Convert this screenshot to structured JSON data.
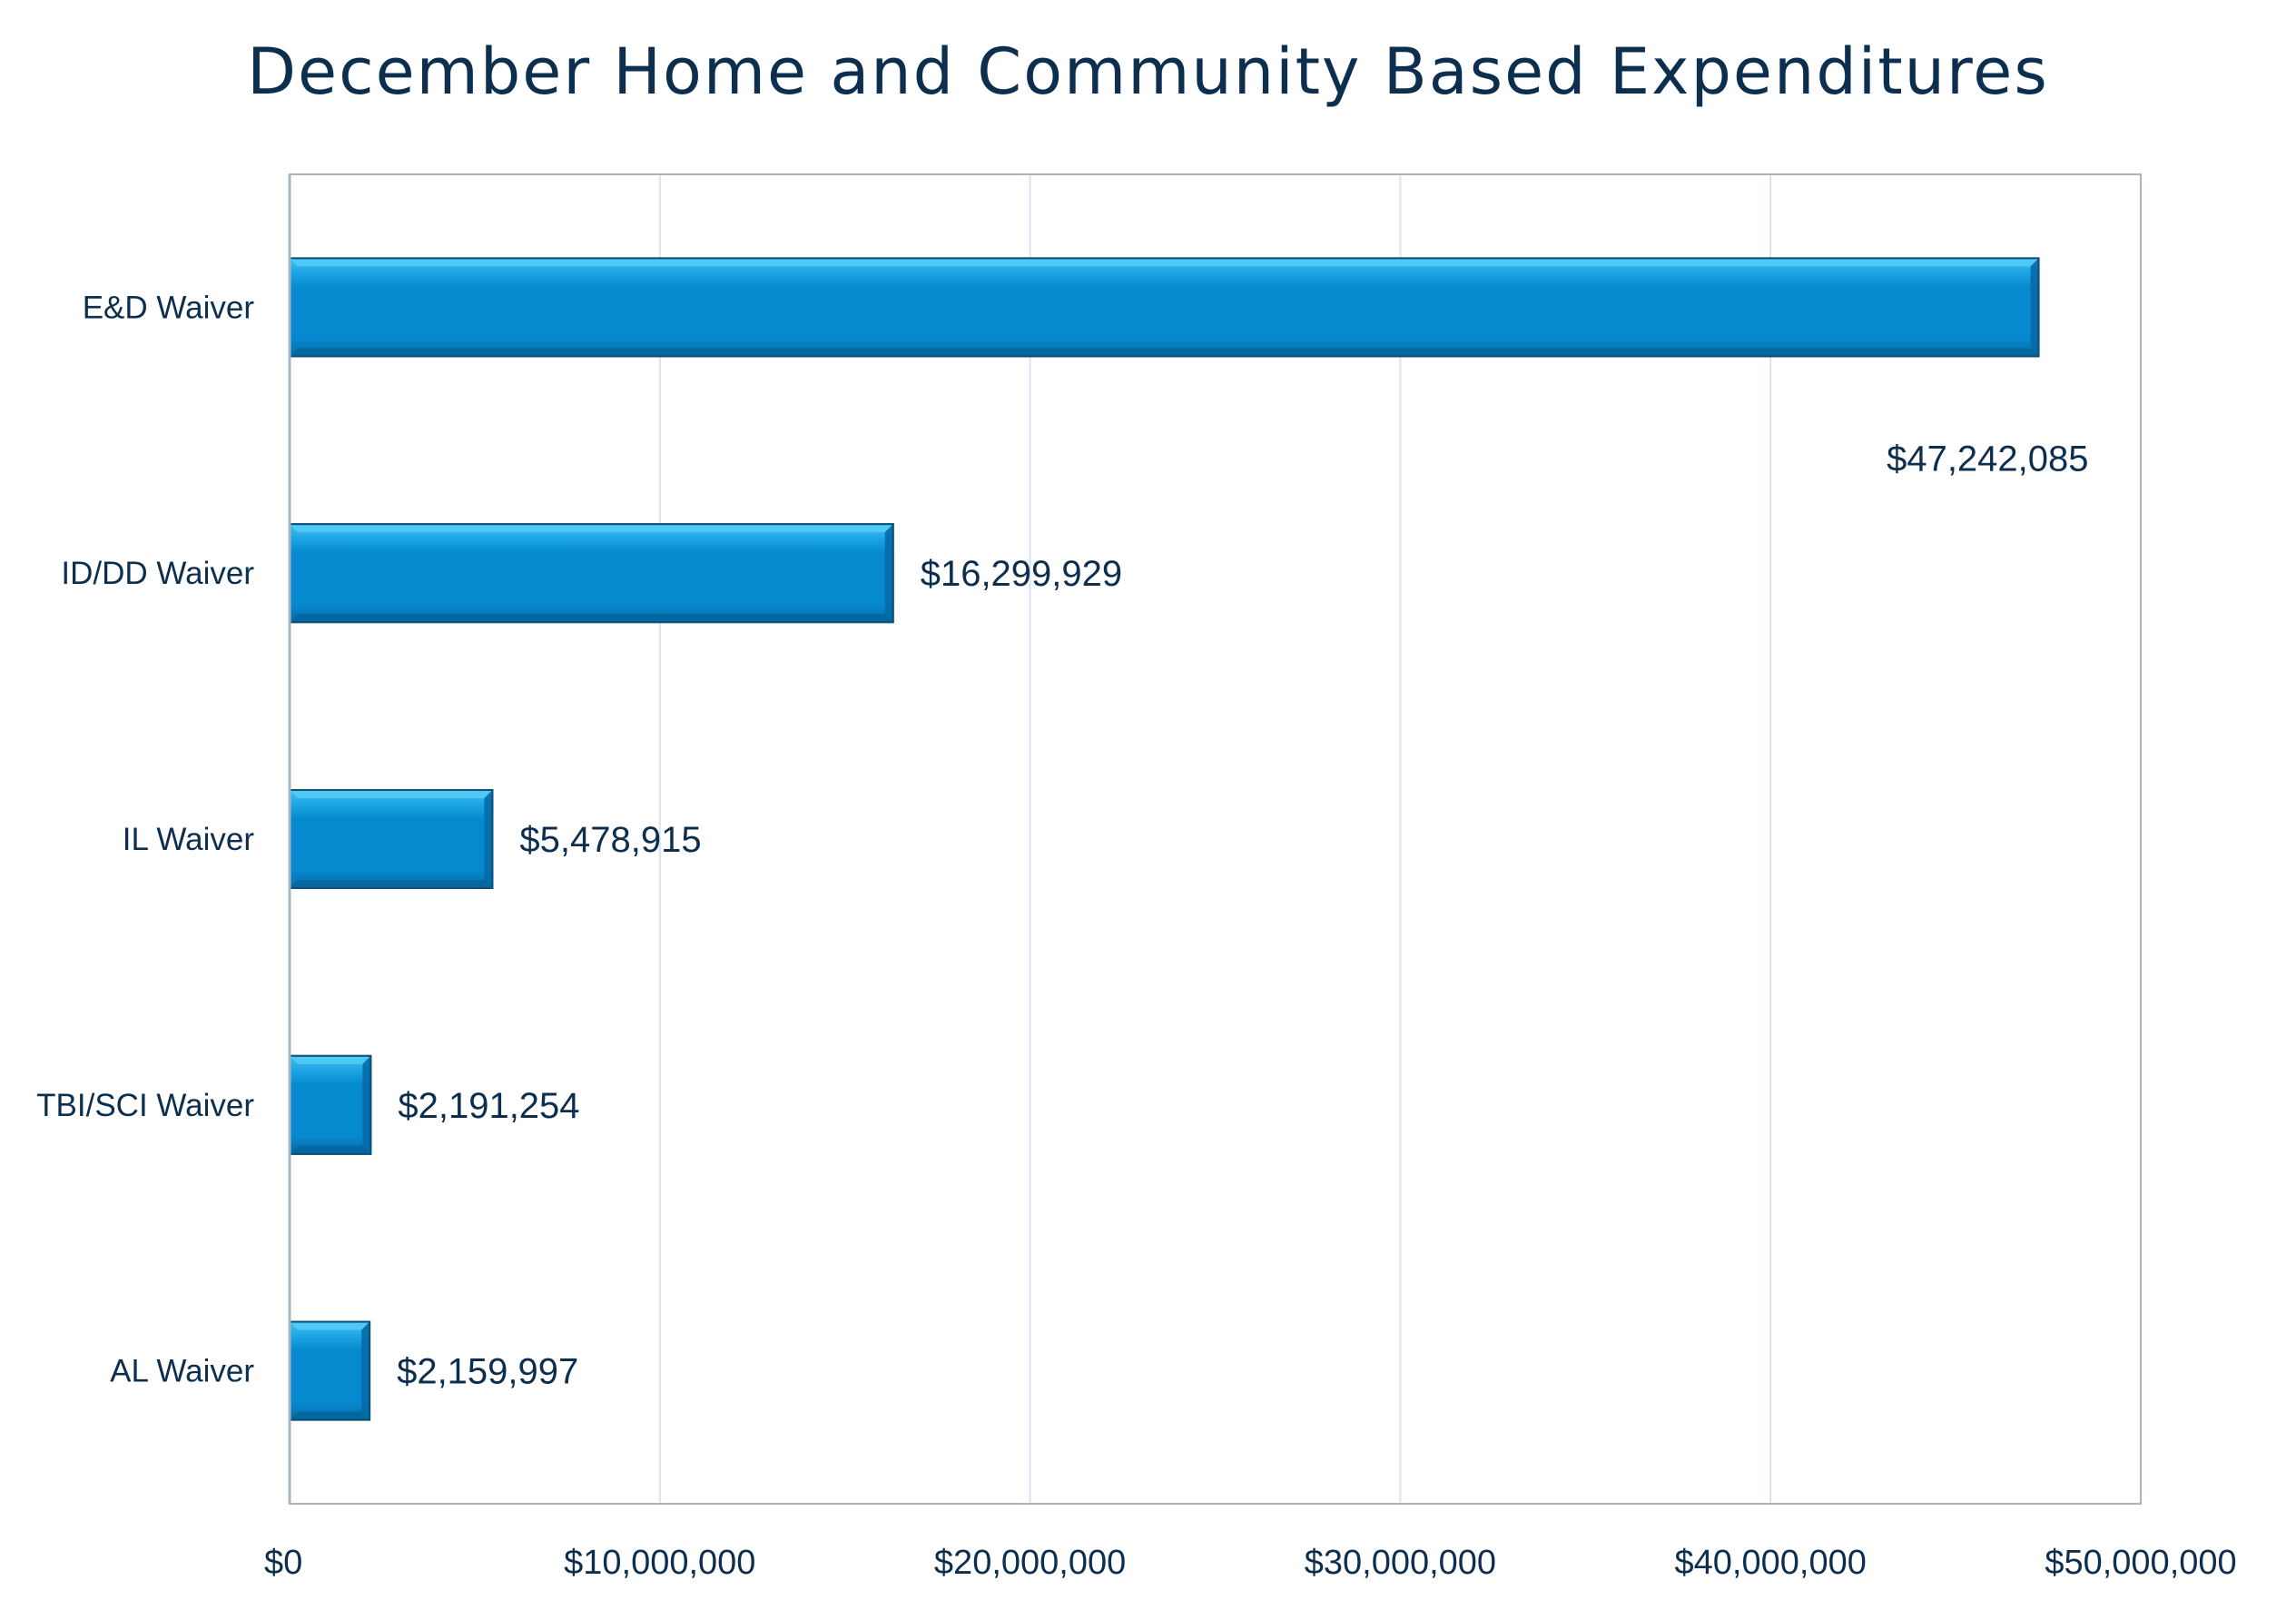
{
  "chart_data": {
    "type": "bar",
    "orientation": "horizontal",
    "title": "December Home and Community Based Expenditures",
    "xlabel": "",
    "ylabel": "",
    "categories": [
      "E&D Waiver",
      "ID/DD Waiver",
      "IL Waiver",
      "TBI/SCI Waiver",
      "AL Waiver"
    ],
    "values": [
      47242085,
      16299929,
      5478915,
      2191254,
      2159997
    ],
    "data_labels": [
      "$47,242,085",
      "$16,299,929",
      "$5,478,915",
      "$2,191,254",
      "$2,159,997"
    ],
    "xlim": [
      0,
      50000000
    ],
    "x_ticks": [
      0,
      10000000,
      20000000,
      30000000,
      40000000,
      50000000
    ],
    "x_tick_labels": [
      "$0",
      "$10,000,000",
      "$20,000,000",
      "$30,000,000",
      "$40,000,000",
      "$50,000,000"
    ],
    "grid": "vertical",
    "legend": "none",
    "colors": {
      "bar_fill": "#0689cf",
      "bar_top": "#3fc2f3",
      "bar_edge": "#0c4f7a",
      "text": "#0d2f4f",
      "axis": "#a9b4c2",
      "grid": "#dde3ea"
    }
  }
}
